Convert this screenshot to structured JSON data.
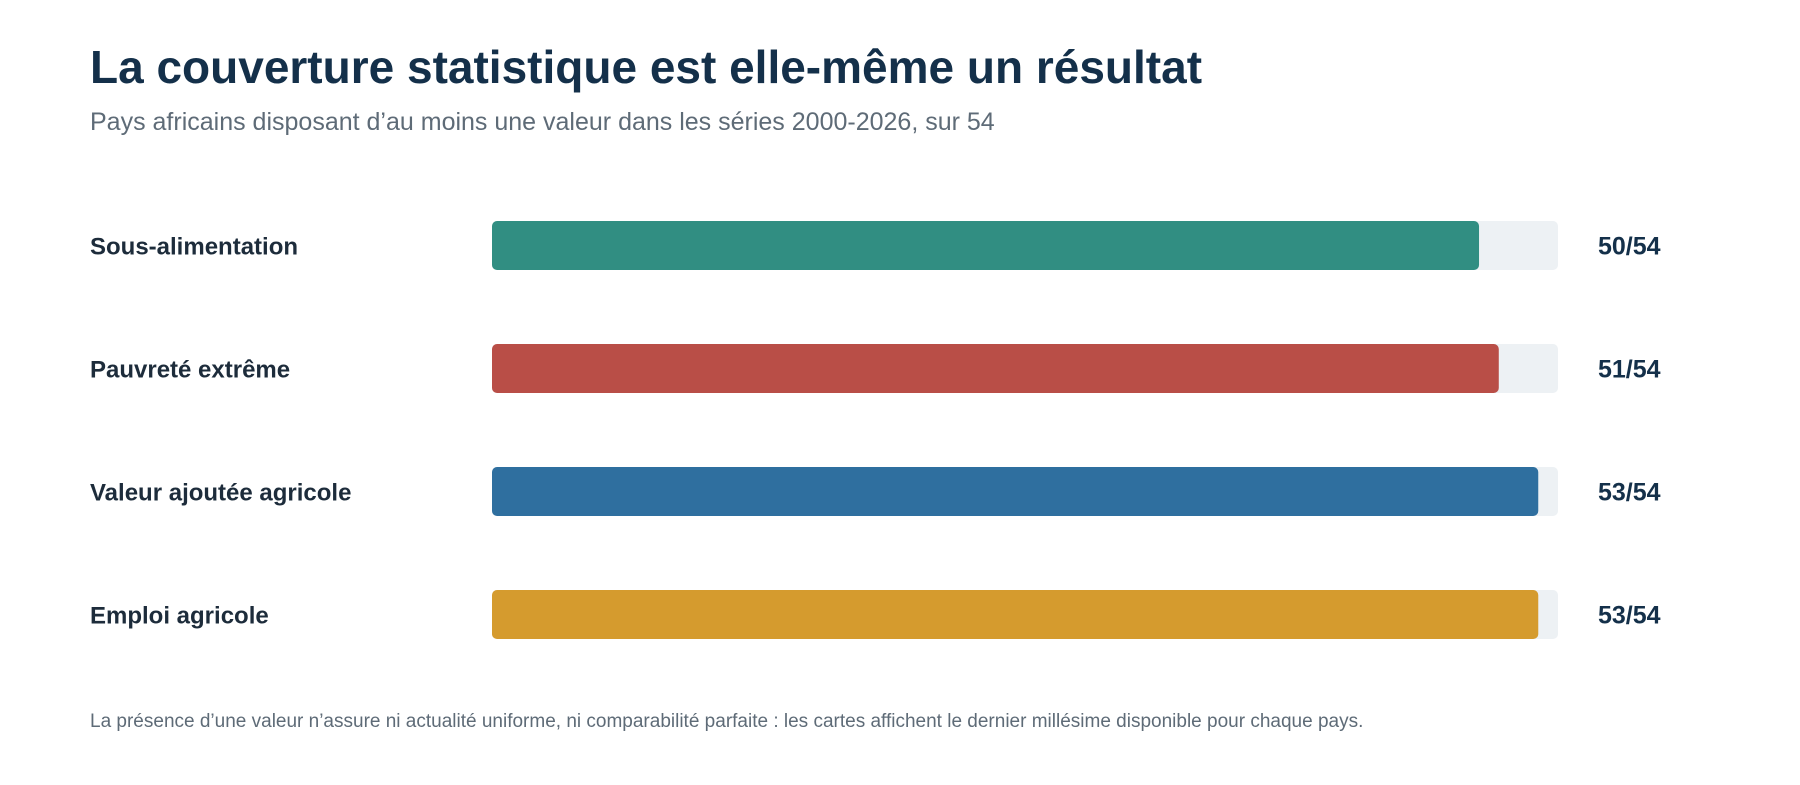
{
  "title": "La couverture statistique est elle-même un résultat",
  "subtitle": "Pays africains disposant d’au moins une valeur dans les séries 2000-2026, sur 54",
  "footnote": "La présence d’une valeur n’assure ni actualité uniforme, ni comparabilité parfaite : les cartes affichent le dernier millésime disponible pour chaque pays.",
  "chart_data": {
    "type": "bar",
    "orientation": "horizontal",
    "title": "La couverture statistique est elle-même un résultat",
    "subtitle": "Pays africains disposant d’au moins une valeur dans les séries 2000-2026, sur 54",
    "total": 54,
    "xlim": [
      0,
      54
    ],
    "grid": false,
    "legend": "none",
    "categories": [
      "Sous-alimentation",
      "Pauvreté extrême",
      "Valeur ajoutée agricole",
      "Emploi agricole"
    ],
    "values": [
      50,
      51,
      53,
      53
    ],
    "value_labels": [
      "50/54",
      "51/54",
      "53/54",
      "53/54"
    ],
    "colors": [
      "#318e82",
      "#b94e47",
      "#2f6f9f",
      "#d59b2e"
    ],
    "track_color": "#edf1f4"
  }
}
